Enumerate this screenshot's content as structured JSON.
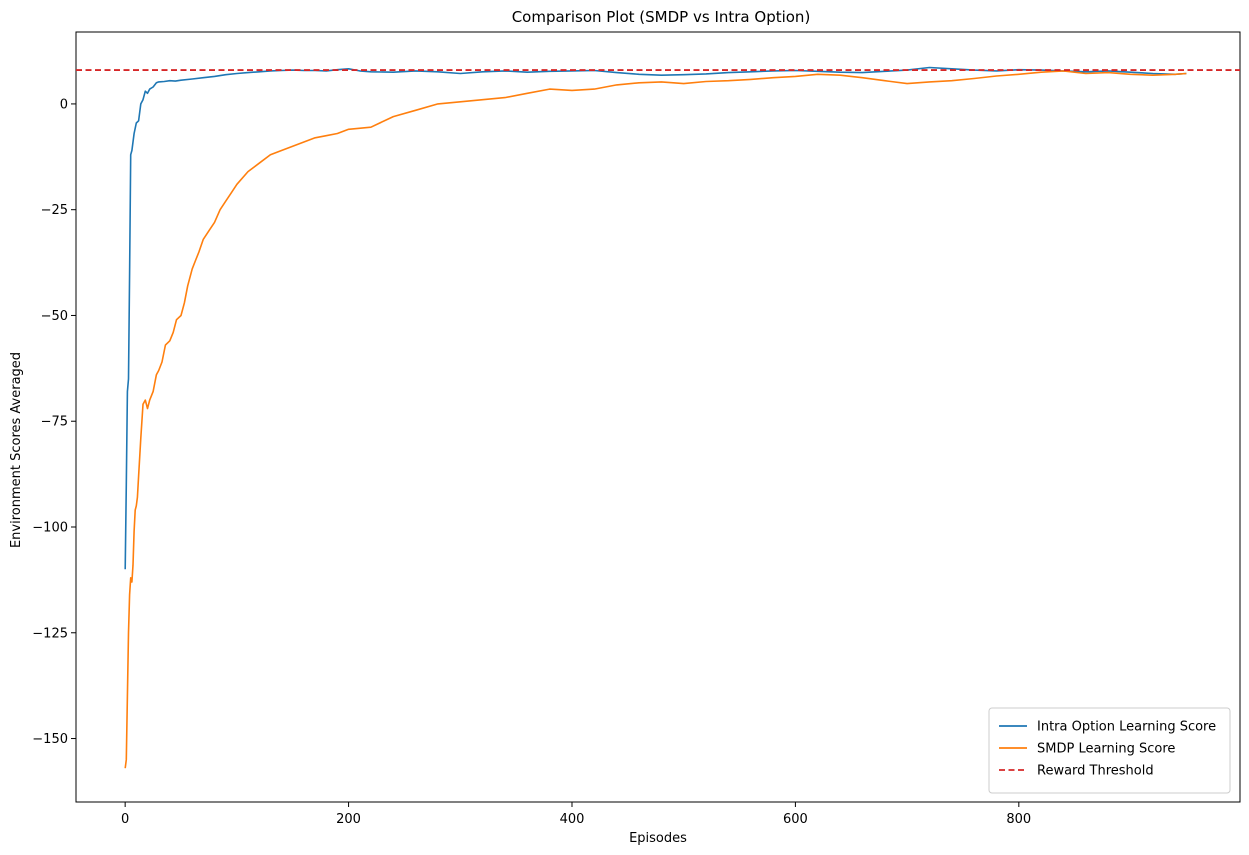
{
  "chart_data": {
    "type": "line",
    "title": "Comparison Plot (SMDP vs Intra Option)",
    "xlabel": "Episodes",
    "ylabel": "Environment Scores Averaged",
    "xlim": [
      -44,
      998
    ],
    "ylim": [
      -165,
      17
    ],
    "xticks": [
      0,
      200,
      400,
      600,
      800
    ],
    "xtick_labels": [
      "0",
      "200",
      "400",
      "600",
      "800"
    ],
    "yticks": [
      -150,
      -125,
      -100,
      -75,
      -50,
      -25,
      0
    ],
    "ytick_labels": [
      "−150",
      "−125",
      "−100",
      "−75",
      "−50",
      "−25",
      "0"
    ],
    "grid": false,
    "legend_position": "lower-right",
    "series": [
      {
        "name": "Intra Option Learning Score",
        "color": "#1f77b4",
        "style": "solid",
        "x": [
          0,
          1,
          2,
          3,
          4,
          5,
          6,
          8,
          10,
          12,
          14,
          16,
          18,
          20,
          22,
          25,
          28,
          30,
          35,
          40,
          45,
          50,
          60,
          70,
          80,
          90,
          100,
          110,
          120,
          130,
          140,
          150,
          160,
          170,
          180,
          190,
          200,
          210,
          220,
          240,
          260,
          280,
          300,
          320,
          340,
          360,
          380,
          400,
          420,
          440,
          460,
          480,
          500,
          520,
          540,
          560,
          580,
          600,
          620,
          640,
          660,
          680,
          700,
          720,
          740,
          760,
          780,
          800,
          820,
          840,
          860,
          880,
          900,
          920,
          940,
          950
        ],
        "y": [
          -110,
          -90,
          -68,
          -65,
          -40,
          -12,
          -11,
          -7,
          -4.5,
          -4,
          0,
          1,
          3,
          2.5,
          3.5,
          4,
          5,
          5.2,
          5.3,
          5.5,
          5.4,
          5.6,
          5.9,
          6.2,
          6.5,
          6.9,
          7.2,
          7.4,
          7.6,
          7.8,
          7.9,
          8.0,
          7.9,
          7.9,
          7.8,
          8.1,
          8.3,
          7.8,
          7.6,
          7.5,
          7.8,
          7.6,
          7.2,
          7.6,
          7.8,
          7.5,
          7.7,
          7.8,
          7.9,
          7.4,
          7.0,
          6.8,
          6.9,
          7.1,
          7.4,
          7.6,
          7.8,
          7.9,
          7.7,
          7.5,
          7.4,
          7.7,
          8.0,
          8.6,
          8.3,
          8.0,
          7.8,
          8.1,
          8.0,
          7.8,
          7.6,
          7.8,
          7.5,
          7.2,
          7.0,
          7.2
        ]
      },
      {
        "name": "SMDP Learning Score",
        "color": "#ff7f0e",
        "style": "solid",
        "x": [
          0,
          1,
          2,
          3,
          4,
          5,
          6,
          7,
          8,
          9,
          10,
          11,
          12,
          14,
          16,
          18,
          20,
          22,
          25,
          28,
          30,
          33,
          36,
          40,
          43,
          46,
          50,
          53,
          56,
          60,
          63,
          66,
          70,
          75,
          80,
          85,
          90,
          95,
          100,
          110,
          120,
          130,
          140,
          150,
          160,
          170,
          180,
          190,
          200,
          220,
          240,
          260,
          280,
          300,
          320,
          340,
          360,
          380,
          400,
          420,
          440,
          460,
          480,
          500,
          520,
          540,
          560,
          580,
          600,
          620,
          640,
          660,
          680,
          700,
          720,
          740,
          760,
          780,
          800,
          820,
          840,
          860,
          880,
          900,
          920,
          940,
          950
        ],
        "y": [
          -157,
          -155,
          -140,
          -125,
          -116,
          -112,
          -113,
          -109,
          -101,
          -96,
          -95,
          -93,
          -88,
          -79,
          -71,
          -70,
          -72,
          -70,
          -68,
          -64,
          -63,
          -61,
          -57,
          -56,
          -54,
          -51,
          -50,
          -47,
          -43,
          -39,
          -37,
          -35,
          -32,
          -30,
          -28,
          -25,
          -23,
          -21,
          -19,
          -16,
          -14,
          -12,
          -11,
          -10,
          -9,
          -8,
          -7.5,
          -7,
          -6,
          -5.5,
          -3,
          -1.5,
          0,
          0.5,
          1,
          1.5,
          2.5,
          3.5,
          3.2,
          3.5,
          4.5,
          5,
          5.2,
          4.8,
          5.3,
          5.5,
          5.8,
          6.2,
          6.5,
          7.0,
          6.8,
          6.2,
          5.5,
          4.8,
          5.2,
          5.5,
          6.0,
          6.6,
          7.0,
          7.5,
          7.8,
          7.2,
          7.4,
          7.0,
          6.8,
          7.0,
          7.2
        ]
      },
      {
        "name": "Reward Threshold",
        "color": "#d62728",
        "style": "dashed",
        "y_constant": 8
      }
    ]
  }
}
